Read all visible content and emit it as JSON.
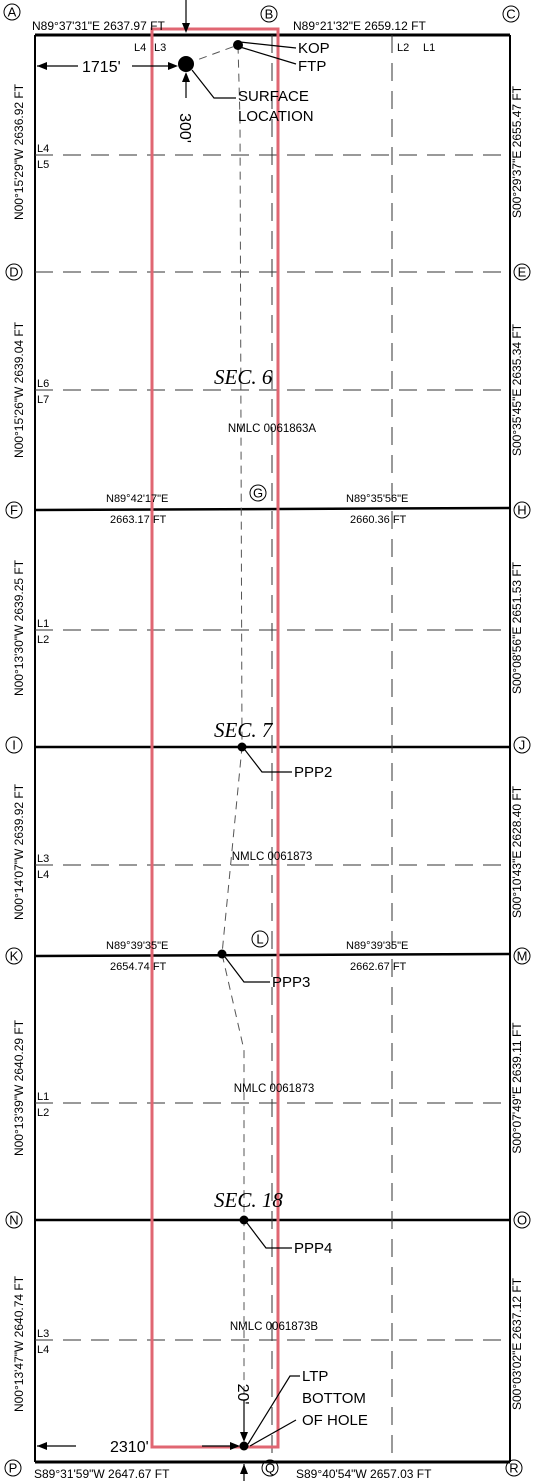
{
  "corners": {
    "A": "A",
    "B": "B",
    "C": "C",
    "D": "D",
    "E": "E",
    "F": "F",
    "G": "G",
    "H": "H",
    "I": "I",
    "J": "J",
    "K": "K",
    "L": "L",
    "M": "M",
    "N": "N",
    "O": "O",
    "P": "P",
    "Q": "Q",
    "R": "R"
  },
  "bearings": {
    "top_left": "N89°37'31\"E  2637.97  FT",
    "top_right": "N89°21'32\"E  2659.12  FT",
    "fg_bearing": "N89°42'17\"E",
    "fg_distance": "2663.17  FT",
    "gh_bearing": "N89°35'56\"E",
    "gh_distance": "2660.36  FT",
    "kl_bearing": "N89°39'35\"E",
    "kl_distance": "2654.74  FT",
    "lm_bearing": "N89°39'35\"E",
    "lm_distance": "2662.67  FT",
    "bottom_left": "S89°31'59\"W  2647.67  FT",
    "bottom_right": "S89°40'54\"W  2657.03  FT",
    "left_ad": "N00°15'29\"W  2636.92  FT",
    "left_df": "N00°15'26\"W  2639.04  FT",
    "left_fi": "N00°13'30\"W  2639.25  FT",
    "left_ik": "N00°14'07\"W  2639.92  FT",
    "left_kn": "N00°13'39\"W  2640.29  FT",
    "left_np": "N00°13'47\"W  2640.74  FT",
    "right_ce": "S00°29'37\"E  2655.47  FT",
    "right_eh": "S00°35'45\"E  2635.34  FT",
    "right_hj": "S00°08'56\"E  2651.53  FT",
    "right_jm": "S00°10'43\"E  2628.40  FT",
    "right_mo": "S00°07'49\"E  2639.11  FT",
    "right_or": "S00°03'02\"E  2637.12  FT"
  },
  "lots": {
    "top_l4": "L4",
    "top_l3": "L3",
    "top_l2": "L2",
    "top_l1": "L1",
    "l4a": "L4",
    "l5": "L5",
    "l6": "L6",
    "l7": "L7",
    "l1a": "L1",
    "l2a": "L2",
    "l3a": "L3",
    "l4b": "L4",
    "l1b": "L1",
    "l2b": "L2",
    "l3b": "L3",
    "l4c": "L4"
  },
  "sections": {
    "sec6": "SEC.  6",
    "sec7": "SEC.  7",
    "sec18": "SEC.  18"
  },
  "leases": {
    "sec6": "NMLC  0061863A",
    "sec7": "NMLC  0061873",
    "sec18a": "NMLC  0061873",
    "sec18b": "NMLC  0061873B"
  },
  "callouts": {
    "kop": "KOP",
    "ftp": "FTP",
    "surface_1": "SURFACE",
    "surface_2": "LOCATION",
    "ppp2": "PPP2",
    "ppp3": "PPP3",
    "ppp4": "PPP4",
    "ltp": "LTP",
    "boh_1": "BOTTOM",
    "boh_2": "OF  HOLE"
  },
  "dimensions": {
    "west_offset": "1715'",
    "south_offset_surface": "300'",
    "west_offset_bottom": "2310'",
    "south_offset_bottom": "20'"
  },
  "colors": {
    "boundary": "#000000",
    "spacing_unit": "#e06672",
    "wellbore": "#555555"
  }
}
